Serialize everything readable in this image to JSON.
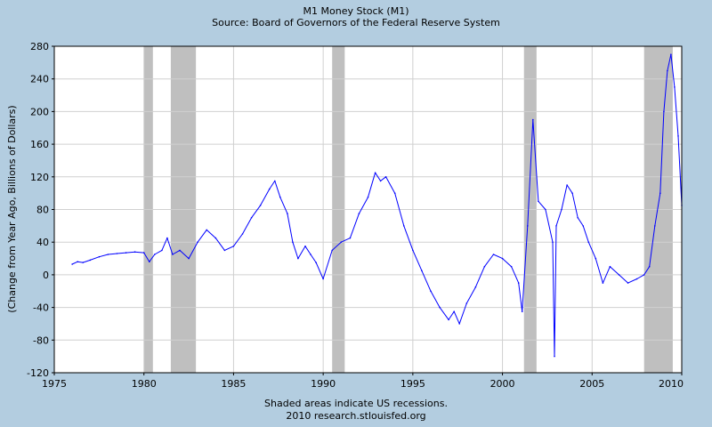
{
  "chart_data": {
    "type": "line",
    "title": "M1 Money Stock (M1)",
    "subtitle": "Source: Board of Governors of the Federal Reserve System",
    "ylabel": "(Change from Year Ago, Billions of Dollars)",
    "xlabel": "",
    "xlim": [
      1975,
      2010
    ],
    "ylim": [
      -120,
      280
    ],
    "x_ticks": [
      "1975",
      "1980",
      "1985",
      "1990",
      "1995",
      "2000",
      "2005",
      "2010"
    ],
    "y_ticks": [
      "280",
      "240",
      "200",
      "160",
      "120",
      "80",
      "40",
      "0",
      "-40",
      "-80",
      "-120"
    ],
    "grid": true,
    "footnote": "Shaded areas indicate US recessions.",
    "credit": "2010 research.stlouisfed.org",
    "recessions": [
      [
        1980.0,
        1980.5
      ],
      [
        1981.5,
        1982.9
      ],
      [
        1990.5,
        1991.2
      ],
      [
        2001.2,
        2001.9
      ],
      [
        2007.9,
        2009.5
      ]
    ],
    "series": [
      {
        "name": "M1 change from year ago",
        "color": "#0000ff",
        "x": [
          1976.0,
          1976.3,
          1976.6,
          1977.0,
          1977.5,
          1978.0,
          1978.5,
          1979.0,
          1979.5,
          1980.0,
          1980.3,
          1980.6,
          1981.0,
          1981.3,
          1981.6,
          1982.0,
          1982.5,
          1983.0,
          1983.5,
          1984.0,
          1984.5,
          1985.0,
          1985.5,
          1986.0,
          1986.5,
          1987.0,
          1987.3,
          1987.6,
          1988.0,
          1988.3,
          1988.6,
          1989.0,
          1989.3,
          1989.6,
          1990.0,
          1990.5,
          1991.0,
          1991.5,
          1992.0,
          1992.5,
          1992.9,
          1993.2,
          1993.5,
          1994.0,
          1994.5,
          1995.0,
          1995.5,
          1996.0,
          1996.5,
          1997.0,
          1997.3,
          1997.6,
          1998.0,
          1998.5,
          1999.0,
          1999.5,
          2000.0,
          2000.5,
          2000.9,
          2001.1,
          2001.4,
          2001.7,
          2002.0,
          2002.4,
          2002.8,
          2002.9,
          2003.0,
          2003.3,
          2003.6,
          2003.9,
          2004.2,
          2004.5,
          2004.8,
          2005.2,
          2005.6,
          2006.0,
          2006.5,
          2007.0,
          2007.5,
          2007.9,
          2008.2,
          2008.5,
          2008.8,
          2009.0,
          2009.2,
          2009.4,
          2009.6,
          2009.8,
          2010.0
        ],
        "values": [
          13,
          16,
          15,
          18,
          22,
          25,
          26,
          27,
          28,
          27,
          16,
          25,
          30,
          45,
          25,
          30,
          20,
          40,
          55,
          45,
          30,
          35,
          50,
          70,
          85,
          105,
          115,
          95,
          75,
          40,
          20,
          35,
          25,
          15,
          -5,
          30,
          40,
          45,
          75,
          95,
          125,
          115,
          120,
          100,
          60,
          30,
          5,
          -20,
          -40,
          -55,
          -45,
          -60,
          -35,
          -15,
          10,
          25,
          20,
          10,
          -10,
          -45,
          60,
          190,
          90,
          80,
          40,
          -100,
          60,
          80,
          110,
          100,
          70,
          60,
          40,
          20,
          -10,
          10,
          0,
          -10,
          -5,
          0,
          10,
          60,
          100,
          200,
          250,
          270,
          230,
          170,
          85
        ]
      }
    ]
  }
}
